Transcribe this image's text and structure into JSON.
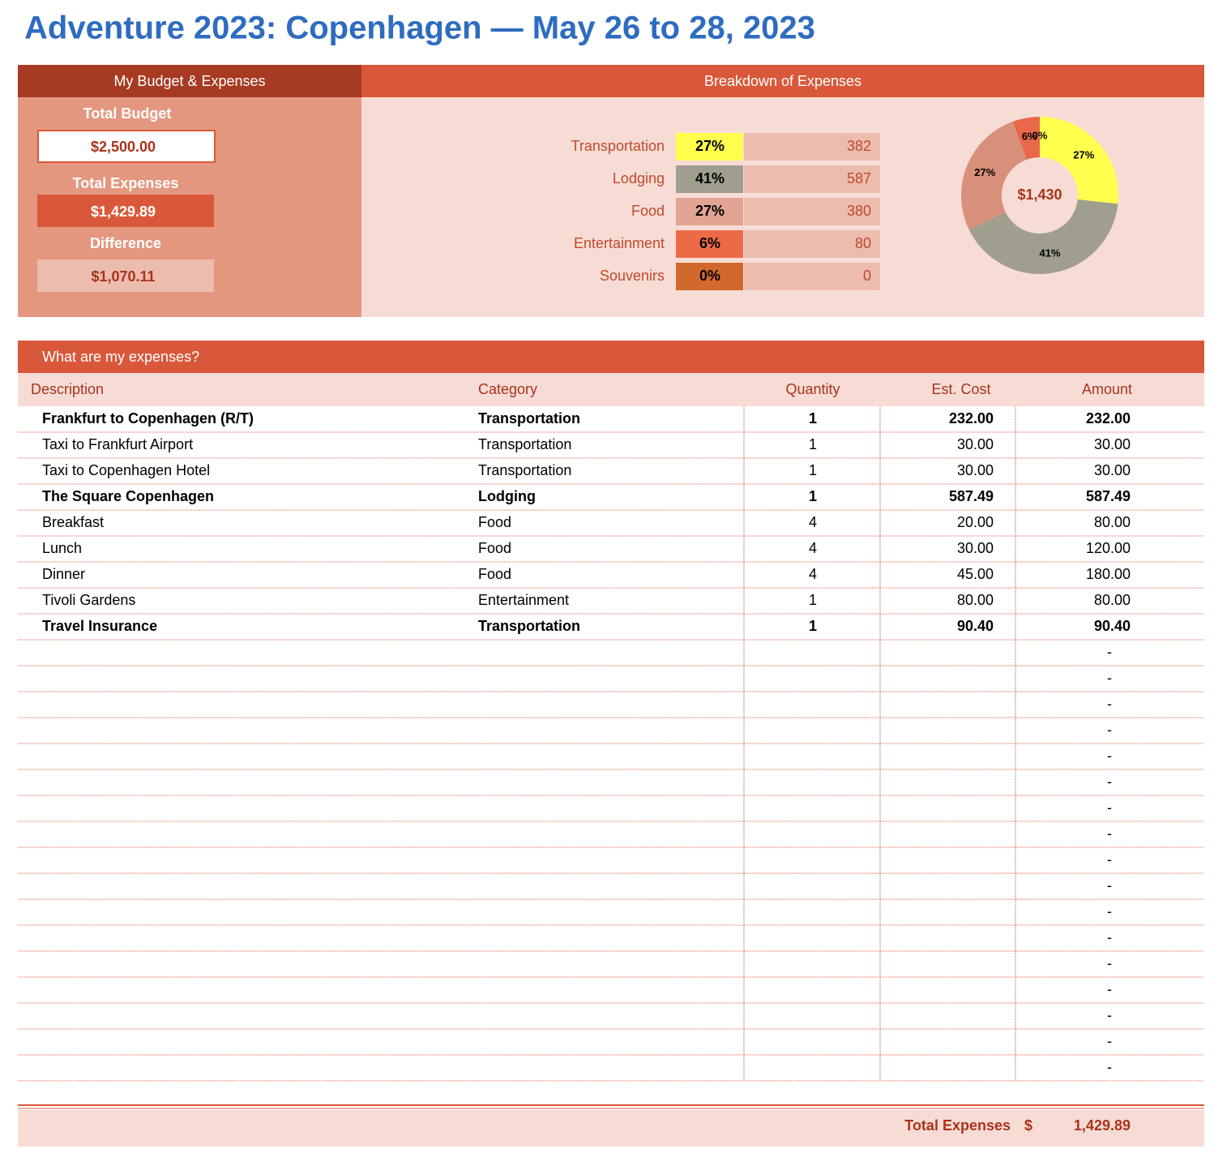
{
  "title": "Adventure 2023: Copenhagen — May 26 to 28, 2023",
  "budget": {
    "header": "My Budget & Expenses",
    "total_budget_label": "Total Budget",
    "total_budget": "$2,500.00",
    "total_expenses_label": "Total Expenses",
    "total_expenses": "$1,429.89",
    "difference_label": "Difference",
    "difference": "$1,070.11"
  },
  "breakdown": {
    "header": "Breakdown of Expenses",
    "rows": [
      {
        "category": "Transportation",
        "percent": "27%",
        "amount": "382",
        "color": "#ffff4d"
      },
      {
        "category": "Lodging",
        "percent": "41%",
        "amount": "587",
        "color": "#a09e8e"
      },
      {
        "category": "Food",
        "percent": "27%",
        "amount": "380",
        "color": "#e2a594"
      },
      {
        "category": "Entertainment",
        "percent": "6%",
        "amount": "80",
        "color": "#ec6a48"
      },
      {
        "category": "Souvenirs",
        "percent": "0%",
        "amount": "0",
        "color": "#d2692c"
      }
    ]
  },
  "chart_data": {
    "type": "donut",
    "center_label": "$1,430",
    "values": [
      26.7,
      41.1,
      26.6,
      5.6,
      0
    ],
    "value_labels": [
      "27%",
      "41%",
      "27%",
      "6%",
      "0%"
    ],
    "colors": [
      "#ffff4d",
      "#a09e8e",
      "#d9907a",
      "#e8694a",
      "#d2692c"
    ]
  },
  "expenses": {
    "header": "What are my expenses?",
    "columns": [
      "Description",
      "Category",
      "Quantity",
      "Est. Cost",
      "Amount"
    ],
    "rows": [
      {
        "description": "Frankfurt to Copenhagen (R/T)",
        "category": "Transportation",
        "quantity": "1",
        "est_cost": "232.00",
        "amount": "232.00",
        "bold": true
      },
      {
        "description": "Taxi to Frankfurt Airport",
        "category": "Transportation",
        "quantity": "1",
        "est_cost": "30.00",
        "amount": "30.00",
        "bold": false
      },
      {
        "description": "Taxi to Copenhagen Hotel",
        "category": "Transportation",
        "quantity": "1",
        "est_cost": "30.00",
        "amount": "30.00",
        "bold": false
      },
      {
        "description": "The Square Copenhagen",
        "category": "Lodging",
        "quantity": "1",
        "est_cost": "587.49",
        "amount": "587.49",
        "bold": true
      },
      {
        "description": "Breakfast",
        "category": "Food",
        "quantity": "4",
        "est_cost": "20.00",
        "amount": "80.00",
        "bold": false
      },
      {
        "description": "Lunch",
        "category": "Food",
        "quantity": "4",
        "est_cost": "30.00",
        "amount": "120.00",
        "bold": false
      },
      {
        "description": "Dinner",
        "category": "Food",
        "quantity": "4",
        "est_cost": "45.00",
        "amount": "180.00",
        "bold": false
      },
      {
        "description": "Tivoli Gardens",
        "category": "Entertainment",
        "quantity": "1",
        "est_cost": "80.00",
        "amount": "80.00",
        "bold": false
      },
      {
        "description": "Travel Insurance",
        "category": "Transportation",
        "quantity": "1",
        "est_cost": "90.40",
        "amount": "90.40",
        "bold": true
      },
      {
        "amount": "-"
      },
      {
        "amount": "-"
      },
      {
        "amount": "-"
      },
      {
        "amount": "-"
      },
      {
        "amount": "-"
      },
      {
        "amount": "-"
      },
      {
        "amount": "-"
      },
      {
        "amount": "-"
      },
      {
        "amount": "-"
      },
      {
        "amount": "-"
      },
      {
        "amount": "-"
      },
      {
        "amount": "-"
      },
      {
        "amount": "-"
      },
      {
        "amount": "-"
      },
      {
        "amount": "-"
      },
      {
        "amount": "-"
      },
      {
        "amount": "-"
      }
    ],
    "total_label": "Total Expenses",
    "total_currency": "$",
    "total": "1,429.89"
  }
}
